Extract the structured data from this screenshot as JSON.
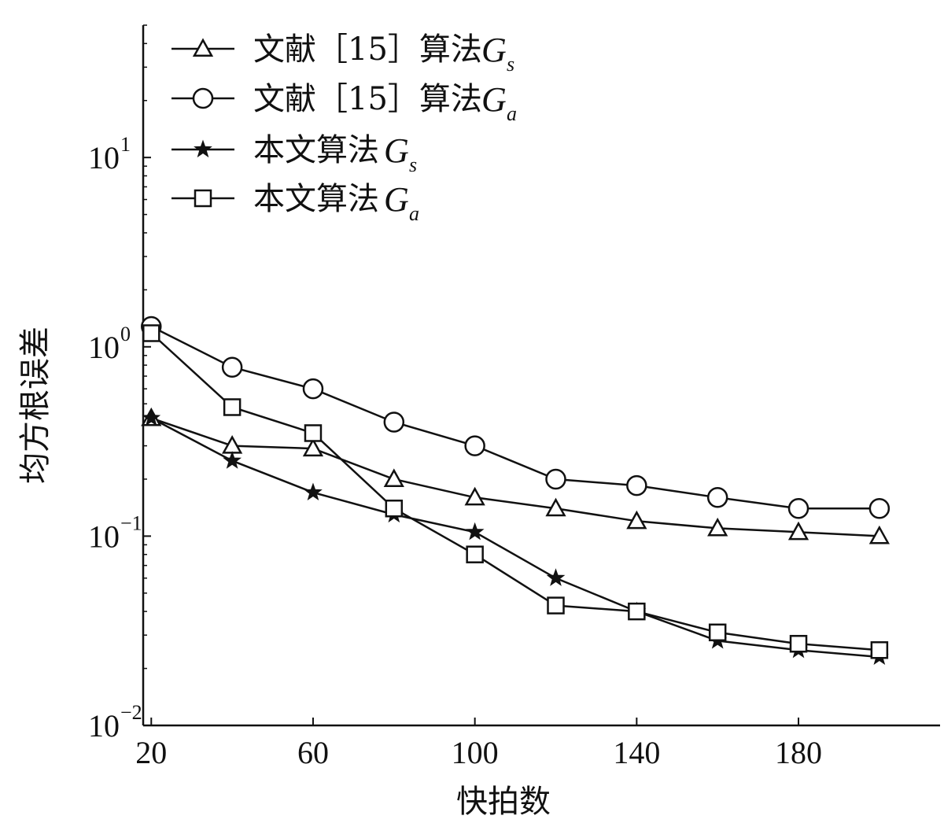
{
  "chart_data": {
    "type": "line",
    "xlabel": "快拍数",
    "ylabel": "均方根误差",
    "x": [
      20,
      40,
      60,
      80,
      100,
      120,
      140,
      160,
      180,
      200
    ],
    "x_ticks": [
      "20",
      "60",
      "100",
      "140",
      "180"
    ],
    "y_scale": "log",
    "ylim": [
      0.01,
      50
    ],
    "y_ticks": [
      {
        "value": 0.01,
        "base": "10",
        "exp": "−2"
      },
      {
        "value": 0.1,
        "base": "10",
        "exp": "−1"
      },
      {
        "value": 1,
        "base": "10",
        "exp": "0"
      },
      {
        "value": 10,
        "base": "10",
        "exp": "1"
      }
    ],
    "legend_position": "top-left",
    "series": [
      {
        "name": "文献［15］算法",
        "name_var": "G",
        "name_sub": "s",
        "marker": "triangle",
        "values": [
          0.42,
          0.3,
          0.29,
          0.2,
          0.16,
          0.14,
          0.12,
          0.11,
          0.105,
          0.1
        ]
      },
      {
        "name": "文献［15］算法",
        "name_var": "G",
        "name_sub": "a",
        "marker": "circle",
        "values": [
          1.28,
          0.78,
          0.6,
          0.4,
          0.3,
          0.2,
          0.185,
          0.16,
          0.14,
          0.14
        ]
      },
      {
        "name": "本文算法",
        "name_var": "G",
        "name_sub": "s",
        "marker": "star",
        "values": [
          0.42,
          0.25,
          0.17,
          0.13,
          0.105,
          0.06,
          0.04,
          0.028,
          0.025,
          0.023
        ]
      },
      {
        "name": "本文算法",
        "name_var": "G",
        "name_sub": "a",
        "marker": "square",
        "values": [
          1.18,
          0.48,
          0.35,
          0.14,
          0.08,
          0.043,
          0.04,
          0.031,
          0.027,
          0.025
        ]
      }
    ]
  }
}
